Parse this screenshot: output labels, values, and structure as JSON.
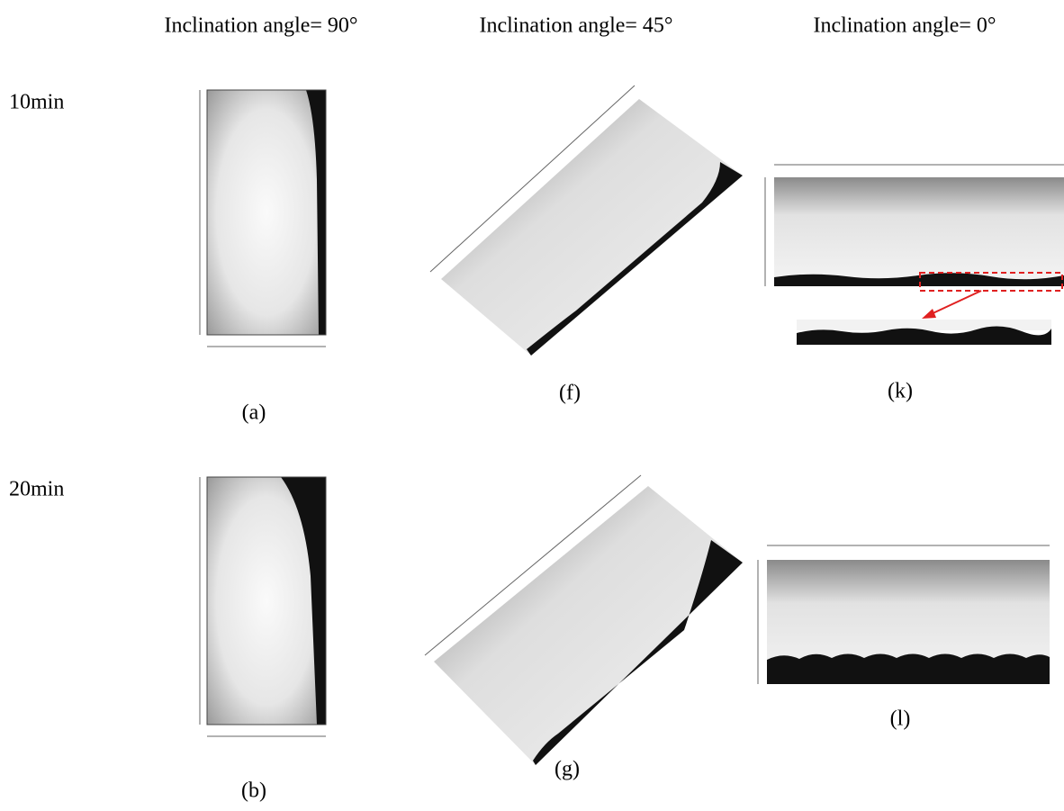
{
  "columns": [
    "Inclination angle= 90°",
    "Inclination angle= 45°",
    "Inclination angle= 0°"
  ],
  "rows": [
    {
      "label": "10min",
      "panels": [
        "(a)",
        "(f)",
        "(k)"
      ]
    },
    {
      "label": "20min",
      "panels": [
        "(b)",
        "(g)",
        "(l)"
      ]
    }
  ]
}
